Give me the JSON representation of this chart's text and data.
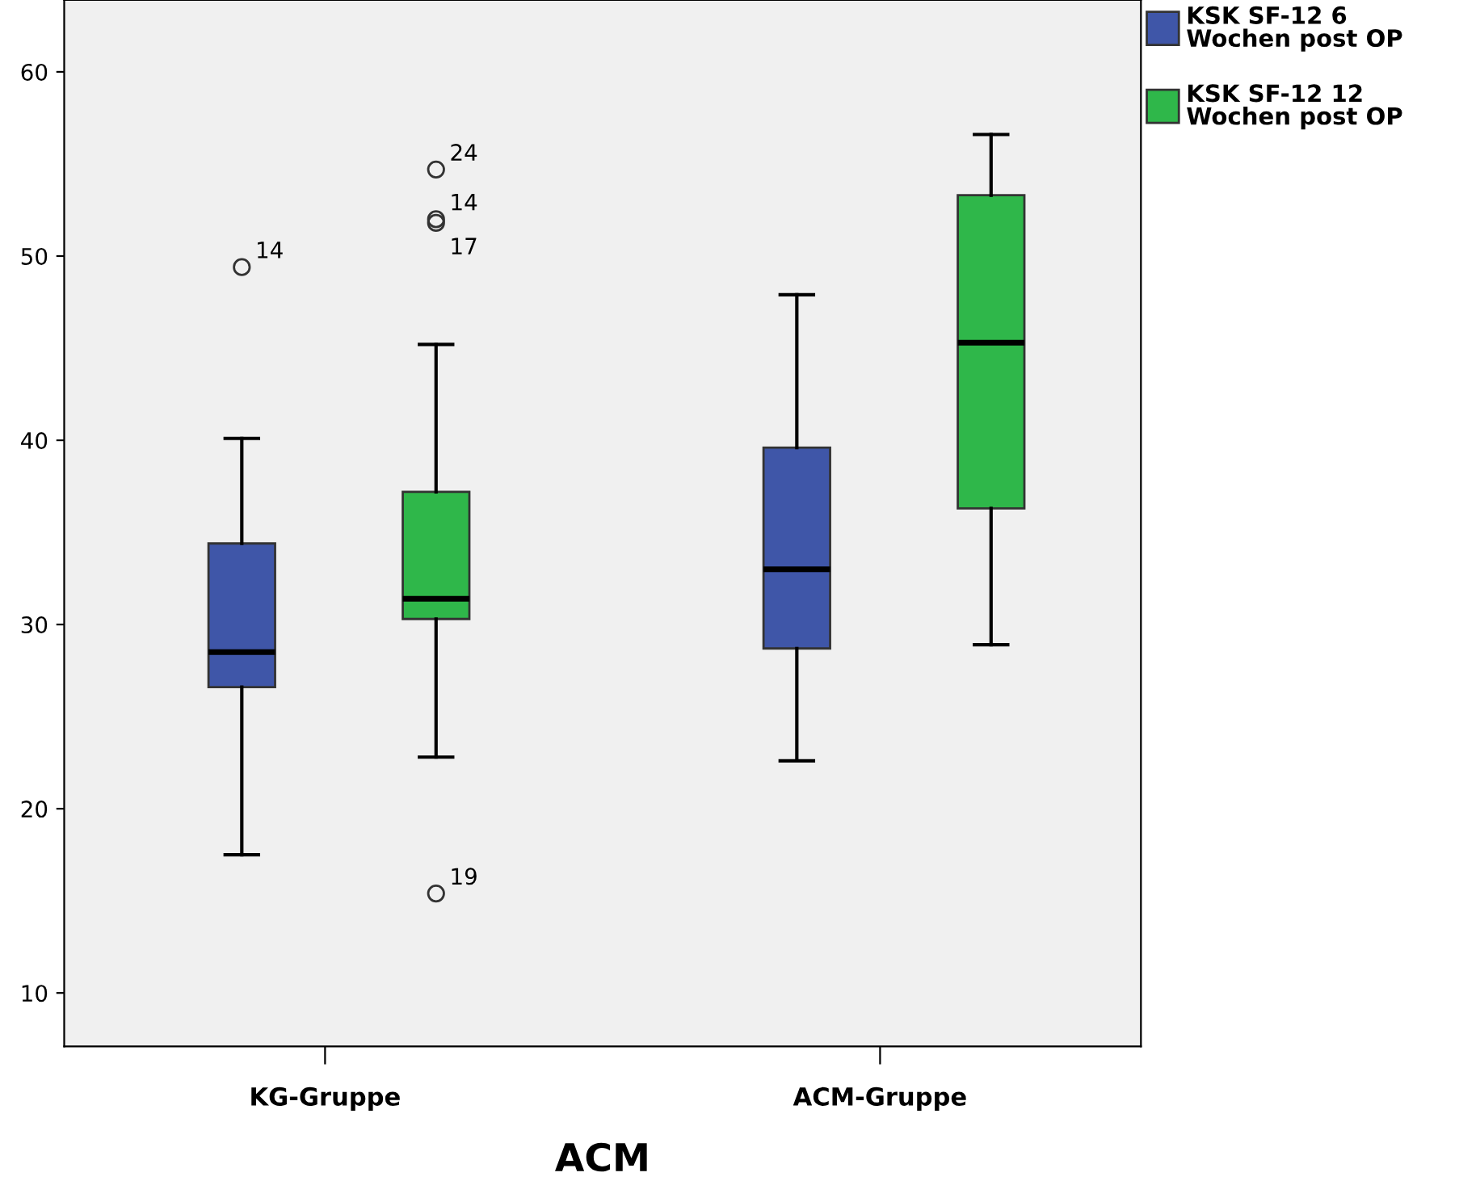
{
  "chart_data": {
    "type": "box",
    "xlabel": "ACM",
    "categories": [
      "KG-Gruppe",
      "ACM-Gruppe"
    ],
    "ylim": [
      7.1,
      63.9
    ],
    "yticks": [
      10,
      20,
      30,
      40,
      50,
      60
    ],
    "legend": "top right",
    "grid": false,
    "series": [
      {
        "name": "KSK SF-12 6 Wochen post OP",
        "color": "#3f56a8",
        "boxes": [
          {
            "low": 17.5,
            "q1": 26.6,
            "median": 28.5,
            "q3": 34.4,
            "high": 40.1,
            "outliers": [
              49.4
            ]
          },
          {
            "low": 22.6,
            "q1": 28.7,
            "median": 33.0,
            "q3": 39.6,
            "high": 47.9
          }
        ]
      },
      {
        "name": "KSK SF-12 12 Wochen post OP",
        "color": "#2fb74a",
        "boxes": [
          {
            "low": 22.8,
            "q1": 30.3,
            "median": 31.4,
            "q3": 37.2,
            "high": 45.2,
            "outliers": [
              54.7,
              52.0,
              51.8,
              15.4
            ]
          },
          {
            "low": 28.9,
            "q1": 36.3,
            "median": 45.3,
            "q3": 53.3,
            "high": 56.6
          }
        ]
      }
    ],
    "annotations": [
      "14",
      "24",
      "14",
      "17",
      "19"
    ]
  }
}
